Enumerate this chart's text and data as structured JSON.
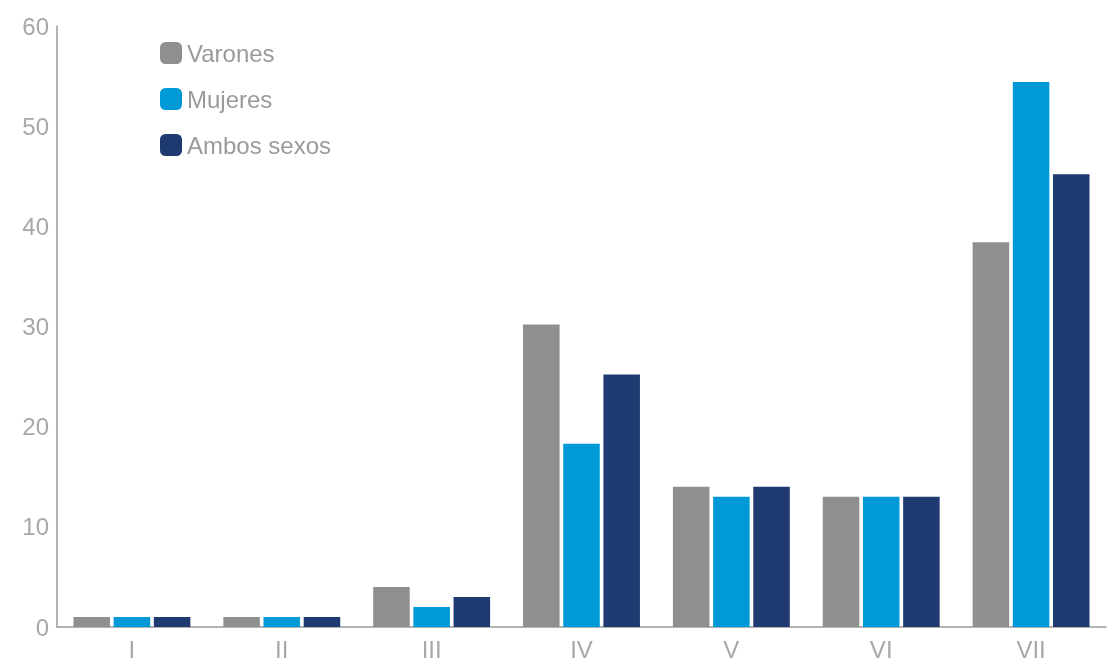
{
  "chart_data": {
    "type": "bar",
    "categories": [
      "I",
      "II",
      "III",
      "IV",
      "V",
      "VI",
      "VII"
    ],
    "series": [
      {
        "name": "Varones",
        "color": "#8f8f8f",
        "values": [
          1,
          1,
          4,
          30.2,
          14,
          13,
          38.4
        ]
      },
      {
        "name": "Mujeres",
        "color": "#0099d8",
        "values": [
          1,
          1,
          2,
          18.3,
          13,
          13,
          54.4
        ]
      },
      {
        "name": "Ambos sexos",
        "color": "#1f3a70",
        "values": [
          1,
          1,
          3,
          25.2,
          14,
          13,
          45.2
        ]
      }
    ],
    "ylim": [
      0,
      60
    ],
    "yticks": [
      0,
      10,
      20,
      30,
      40,
      50,
      60
    ],
    "grid": false,
    "legend": "top left"
  }
}
